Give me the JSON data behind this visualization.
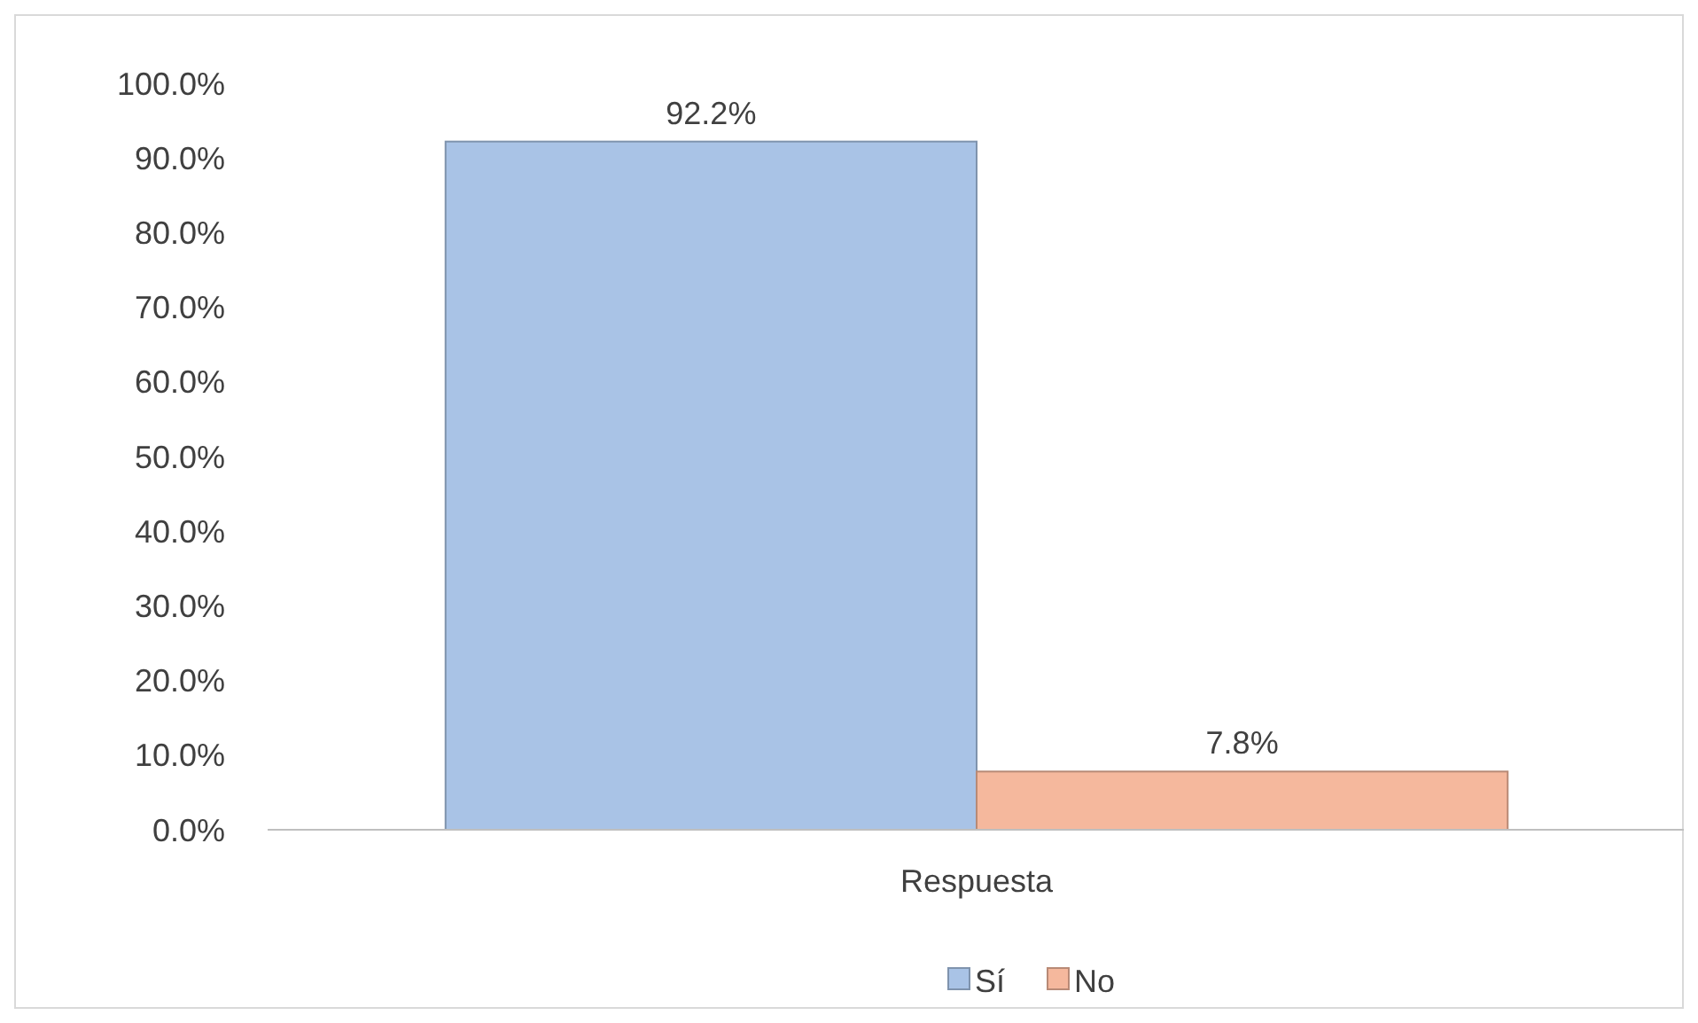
{
  "chart_data": {
    "type": "bar",
    "categories": [
      "Respuesta"
    ],
    "series": [
      {
        "name": "Sí",
        "color": "#a9c3e6",
        "values": [
          92.2
        ],
        "value_labels": [
          "92.2%"
        ]
      },
      {
        "name": "No",
        "color": "#f5b89d",
        "values": [
          7.8
        ],
        "value_labels": [
          "7.8%"
        ]
      }
    ],
    "ylim": [
      0,
      100
    ],
    "yticks": [
      {
        "value": 0,
        "label": "0.0%"
      },
      {
        "value": 10,
        "label": "10.0%"
      },
      {
        "value": 20,
        "label": "20.0%"
      },
      {
        "value": 30,
        "label": "30.0%"
      },
      {
        "value": 40,
        "label": "40.0%"
      },
      {
        "value": 50,
        "label": "50.0%"
      },
      {
        "value": 60,
        "label": "60.0%"
      },
      {
        "value": 70,
        "label": "70.0%"
      },
      {
        "value": 80,
        "label": "80.0%"
      },
      {
        "value": 90,
        "label": "90.0%"
      },
      {
        "value": 100,
        "label": "100.0%"
      }
    ],
    "grid": false,
    "legend": "bottom"
  }
}
